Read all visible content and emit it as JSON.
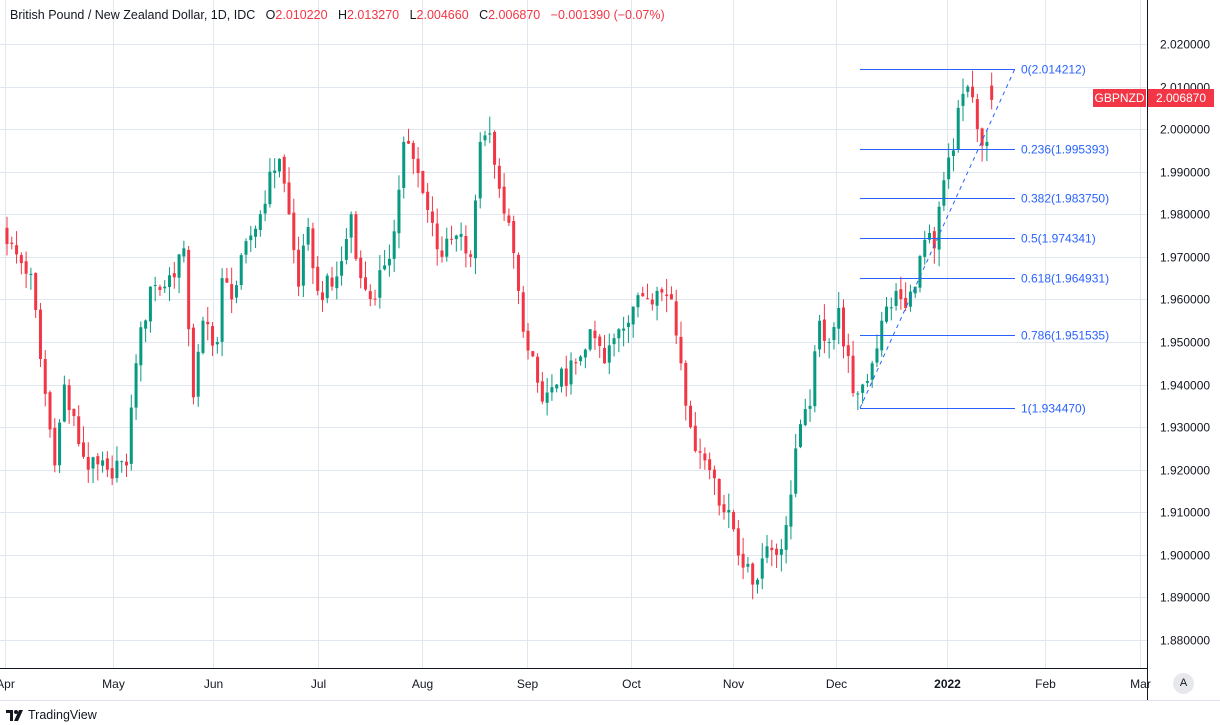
{
  "legend": {
    "title": "British Pound / New Zealand Dollar, 1D, IDC",
    "open_label": "O",
    "open": "2.010220",
    "high_label": "H",
    "high": "2.013270",
    "low_label": "L",
    "low": "2.004660",
    "close_label": "C",
    "close": "2.006870",
    "change": "−0.001390 (−0.07%)"
  },
  "branding": {
    "name": "TradingView"
  },
  "auto_scale_label": "A",
  "colors": {
    "up": "#089981",
    "down": "#f23645",
    "fib": "#2962ff",
    "grid": "#e0e7ee",
    "axis": "#131722"
  },
  "chart_data": {
    "type": "candlestick",
    "title": "British Pound / New Zealand Dollar, 1D, IDC",
    "symbol": "GBPNZD",
    "last_price": "2.006870",
    "ylim": [
      1.872,
      2.03
    ],
    "y_ticks": [
      "2.020000",
      "2.010000",
      "2.000000",
      "1.990000",
      "1.980000",
      "1.970000",
      "1.960000",
      "1.950000",
      "1.940000",
      "1.930000",
      "1.920000",
      "1.910000",
      "1.900000",
      "1.890000",
      "1.880000"
    ],
    "x_ticks": [
      {
        "label": "Apr",
        "bar": -0.4
      },
      {
        "label": "May",
        "bar": 22.2
      },
      {
        "label": "Jun",
        "bar": 43.1
      },
      {
        "label": "Jul",
        "bar": 65.1
      },
      {
        "label": "Aug",
        "bar": 86.8
      },
      {
        "label": "Sep",
        "bar": 108.8
      },
      {
        "label": "Oct",
        "bar": 130.5
      },
      {
        "label": "Nov",
        "bar": 151.9
      },
      {
        "label": "Dec",
        "bar": 173.4
      },
      {
        "label": "2022",
        "bar": 196.6,
        "bold": true
      },
      {
        "label": "Feb",
        "bar": 217.2
      },
      {
        "label": "Mar",
        "bar": 237.1
      }
    ],
    "bar_count": 207,
    "close_keypoints": [
      [
        0,
        1.973
      ],
      [
        5,
        1.966
      ],
      [
        7,
        1.946
      ],
      [
        10,
        1.921
      ],
      [
        12,
        1.94
      ],
      [
        13,
        1.934
      ],
      [
        17,
        1.92
      ],
      [
        21,
        1.92
      ],
      [
        24,
        1.922
      ],
      [
        25,
        1.921
      ],
      [
        27,
        1.945
      ],
      [
        30,
        1.963
      ],
      [
        33,
        1.963
      ],
      [
        37,
        1.972
      ],
      [
        39,
        1.937
      ],
      [
        41,
        1.955
      ],
      [
        44,
        1.95
      ],
      [
        45,
        1.965
      ],
      [
        47,
        1.96
      ],
      [
        51,
        1.975
      ],
      [
        53,
        1.98
      ],
      [
        55,
        1.99
      ],
      [
        57,
        1.993
      ],
      [
        59,
        1.98
      ],
      [
        61,
        1.963
      ],
      [
        63,
        1.977
      ],
      [
        65,
        1.962
      ],
      [
        68,
        1.963
      ],
      [
        70,
        1.969
      ],
      [
        72,
        1.98
      ],
      [
        74,
        1.965
      ],
      [
        77,
        1.96
      ],
      [
        79,
        1.968
      ],
      [
        81,
        1.976
      ],
      [
        83,
        1.997
      ],
      [
        85,
        1.993
      ],
      [
        87,
        1.985
      ],
      [
        91,
        1.97
      ],
      [
        94,
        1.975
      ],
      [
        97,
        1.97
      ],
      [
        99,
        1.997
      ],
      [
        101,
        1.999
      ],
      [
        103,
        1.986
      ],
      [
        105,
        1.978
      ],
      [
        107,
        1.962
      ],
      [
        109,
        1.948
      ],
      [
        112,
        1.936
      ],
      [
        115,
        1.94
      ],
      [
        119,
        1.945
      ],
      [
        122,
        1.953
      ],
      [
        125,
        1.945
      ],
      [
        128,
        1.953
      ],
      [
        132,
        1.961
      ],
      [
        136,
        1.962
      ],
      [
        139,
        1.96
      ],
      [
        141,
        1.945
      ],
      [
        143,
        1.93
      ],
      [
        145,
        1.924
      ],
      [
        148,
        1.918
      ],
      [
        150,
        1.91
      ],
      [
        152,
        1.906
      ],
      [
        154,
        1.897
      ],
      [
        156,
        1.893
      ],
      [
        159,
        1.902
      ],
      [
        161,
        1.9
      ],
      [
        163,
        1.907
      ],
      [
        165,
        1.925
      ],
      [
        168,
        1.935
      ],
      [
        170,
        1.955
      ],
      [
        172,
        1.95
      ],
      [
        174,
        1.958
      ],
      [
        177,
        1.938
      ],
      [
        179,
        1.94
      ],
      [
        181,
        1.945
      ],
      [
        183,
        1.955
      ],
      [
        186,
        1.962
      ],
      [
        188,
        1.958
      ],
      [
        190,
        1.963
      ],
      [
        192,
        1.974
      ],
      [
        194,
        1.972
      ],
      [
        196,
        1.988
      ],
      [
        198,
        1.995
      ],
      [
        199,
        2.005
      ],
      [
        201,
        2.01
      ],
      [
        203,
        2.0
      ],
      [
        205,
        1.997
      ],
      [
        206,
        2.00687
      ]
    ],
    "fibonacci": {
      "start_bar": 178,
      "end_bar": 210,
      "low": 1.93447,
      "high": 2.014212,
      "levels": [
        {
          "ratio": "0",
          "price": 2.014212,
          "label": "0(2.014212)"
        },
        {
          "ratio": "0.236",
          "price": 1.995393,
          "label": "0.236(1.995393)"
        },
        {
          "ratio": "0.382",
          "price": 1.98375,
          "label": "0.382(1.983750)"
        },
        {
          "ratio": "0.5",
          "price": 1.974341,
          "label": "0.5(1.974341)"
        },
        {
          "ratio": "0.618",
          "price": 1.964931,
          "label": "0.618(1.964931)"
        },
        {
          "ratio": "0.786",
          "price": 1.951535,
          "label": "0.786(1.951535)"
        },
        {
          "ratio": "1",
          "price": 1.93447,
          "label": "1(1.934470)"
        }
      ]
    }
  }
}
